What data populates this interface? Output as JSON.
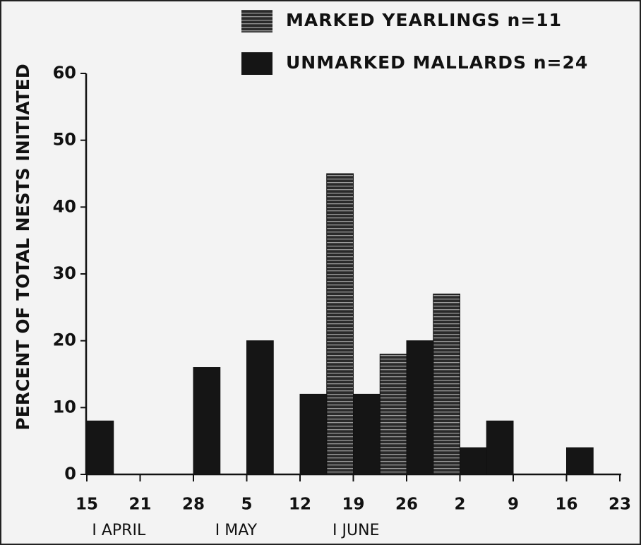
{
  "chart_data": {
    "type": "histogram",
    "ylabel": "PERCENT OF TOTAL NESTS INITIATED",
    "bins": [
      0,
      0.5,
      1,
      1.5,
      2,
      2.5,
      3,
      3.5,
      4,
      4.5,
      5,
      5.5,
      6,
      6.5,
      7,
      7.5,
      8,
      8.5,
      9,
      9.5
    ],
    "series": [
      {
        "name": "MARKED YEARLINGS n=11",
        "color": "#2a2a2a",
        "values": [
          null,
          null,
          null,
          null,
          null,
          null,
          null,
          null,
          null,
          45,
          null,
          18,
          null,
          27,
          null,
          null,
          null,
          null,
          null
        ]
      },
      {
        "name": "UNMARKED MALLARDS n=24",
        "color": "#151515",
        "values": [
          8,
          null,
          null,
          null,
          16,
          null,
          20,
          null,
          12,
          null,
          12,
          null,
          20,
          null,
          4,
          8,
          null,
          null,
          4
        ]
      }
    ],
    "xlim": [
      0,
      10
    ],
    "xticks": [
      {
        "value": 0,
        "label": "15"
      },
      {
        "value": 1,
        "label": "21"
      },
      {
        "value": 2,
        "label": "28"
      },
      {
        "value": 3,
        "label": "5"
      },
      {
        "value": 4,
        "label": "12"
      },
      {
        "value": 5,
        "label": "19"
      },
      {
        "value": 6,
        "label": "26"
      },
      {
        "value": 7,
        "label": "2"
      },
      {
        "value": 8,
        "label": "9"
      },
      {
        "value": 9,
        "label": "16"
      },
      {
        "value": 10,
        "label": "23"
      }
    ],
    "month_labels": [
      {
        "value": 0.6,
        "label": "I APRIL"
      },
      {
        "value": 2.8,
        "label": "I MAY"
      },
      {
        "value": 5.05,
        "label": "I JUNE"
      }
    ],
    "ylim": [
      0,
      60
    ],
    "yticks": [
      0,
      10,
      20,
      30,
      40,
      50,
      60
    ]
  }
}
